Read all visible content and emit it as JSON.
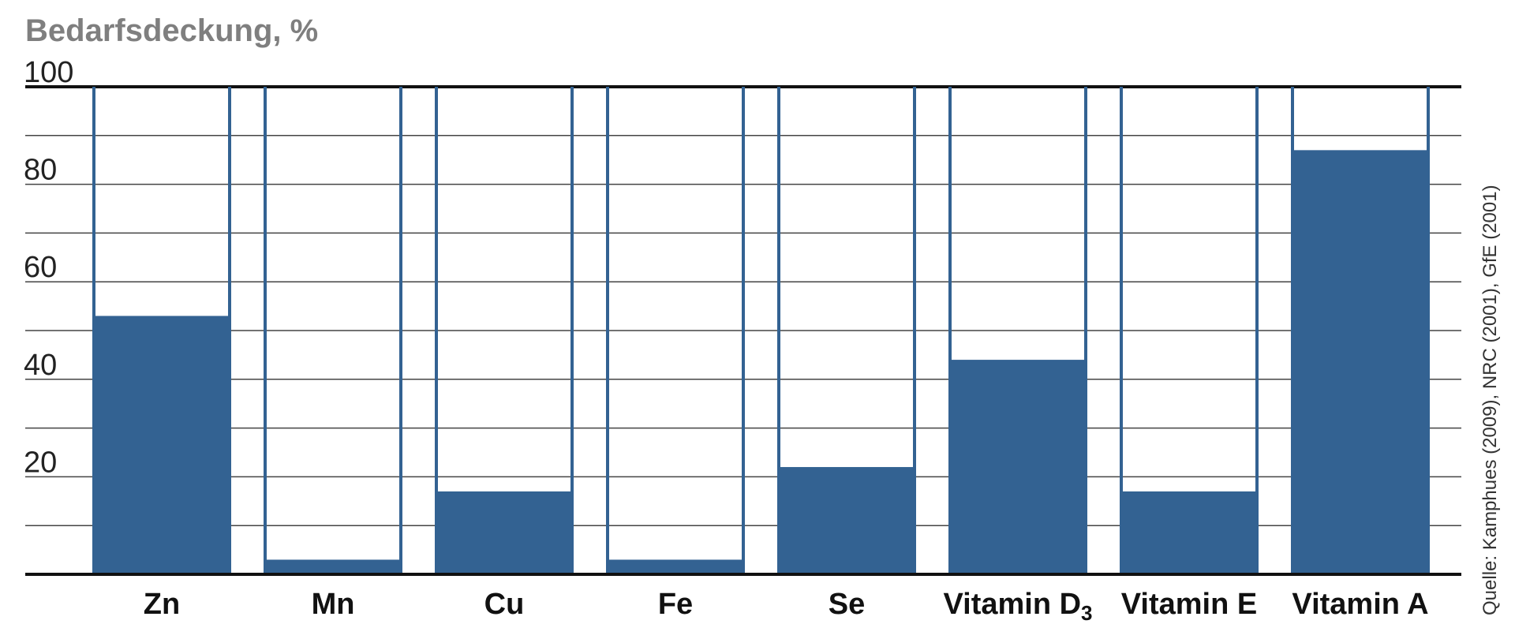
{
  "chart_data": {
    "type": "bar",
    "ylabel": "Bedarfsdeckung, %",
    "ylim": [
      0,
      100
    ],
    "yticks": [
      "20",
      "40",
      "60",
      "80",
      "100"
    ],
    "grid": true,
    "categories": [
      {
        "main": "Zn",
        "sub": ""
      },
      {
        "main": "Mn",
        "sub": ""
      },
      {
        "main": "Cu",
        "sub": ""
      },
      {
        "main": "Fe",
        "sub": ""
      },
      {
        "main": "Se",
        "sub": ""
      },
      {
        "main": "Vitamin D",
        "sub": "3"
      },
      {
        "main": "Vitamin E",
        "sub": ""
      },
      {
        "main": "Vitamin A",
        "sub": ""
      }
    ],
    "values": [
      53,
      3,
      17,
      3,
      22,
      44,
      17,
      87
    ],
    "source": "Quelle: Kamphues (2009), NRC (2001), GfE (2001)",
    "colors": {
      "bar": "#336292",
      "axis": "#111111",
      "grid": "#444444"
    }
  }
}
